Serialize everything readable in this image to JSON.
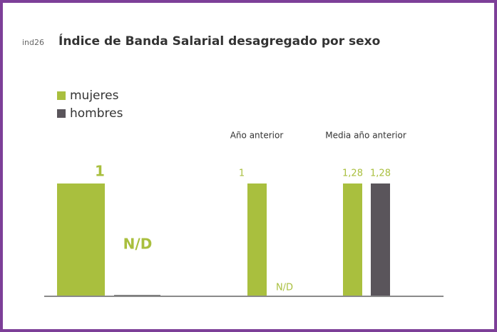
{
  "chart_data": {
    "type": "bar",
    "id_label": "ind26",
    "title": "Índice de Banda Salarial desagregado por sexo",
    "categories": [
      null,
      "Año anterior",
      "Media año anterior"
    ],
    "group_ylims": [
      [
        0,
        1
      ],
      [
        0,
        1
      ],
      [
        0,
        1.28
      ]
    ],
    "series": [
      {
        "name": "mujeres",
        "color": "#a9bf3e",
        "values": [
          1,
          1,
          1.28
        ],
        "value_labels": [
          "1",
          "1",
          "1,28"
        ]
      },
      {
        "name": "hombres",
        "color": "#5a555b",
        "values": [
          null,
          null,
          1.28
        ],
        "value_labels": [
          "N/D",
          "N/D",
          "1,28"
        ]
      }
    ]
  }
}
